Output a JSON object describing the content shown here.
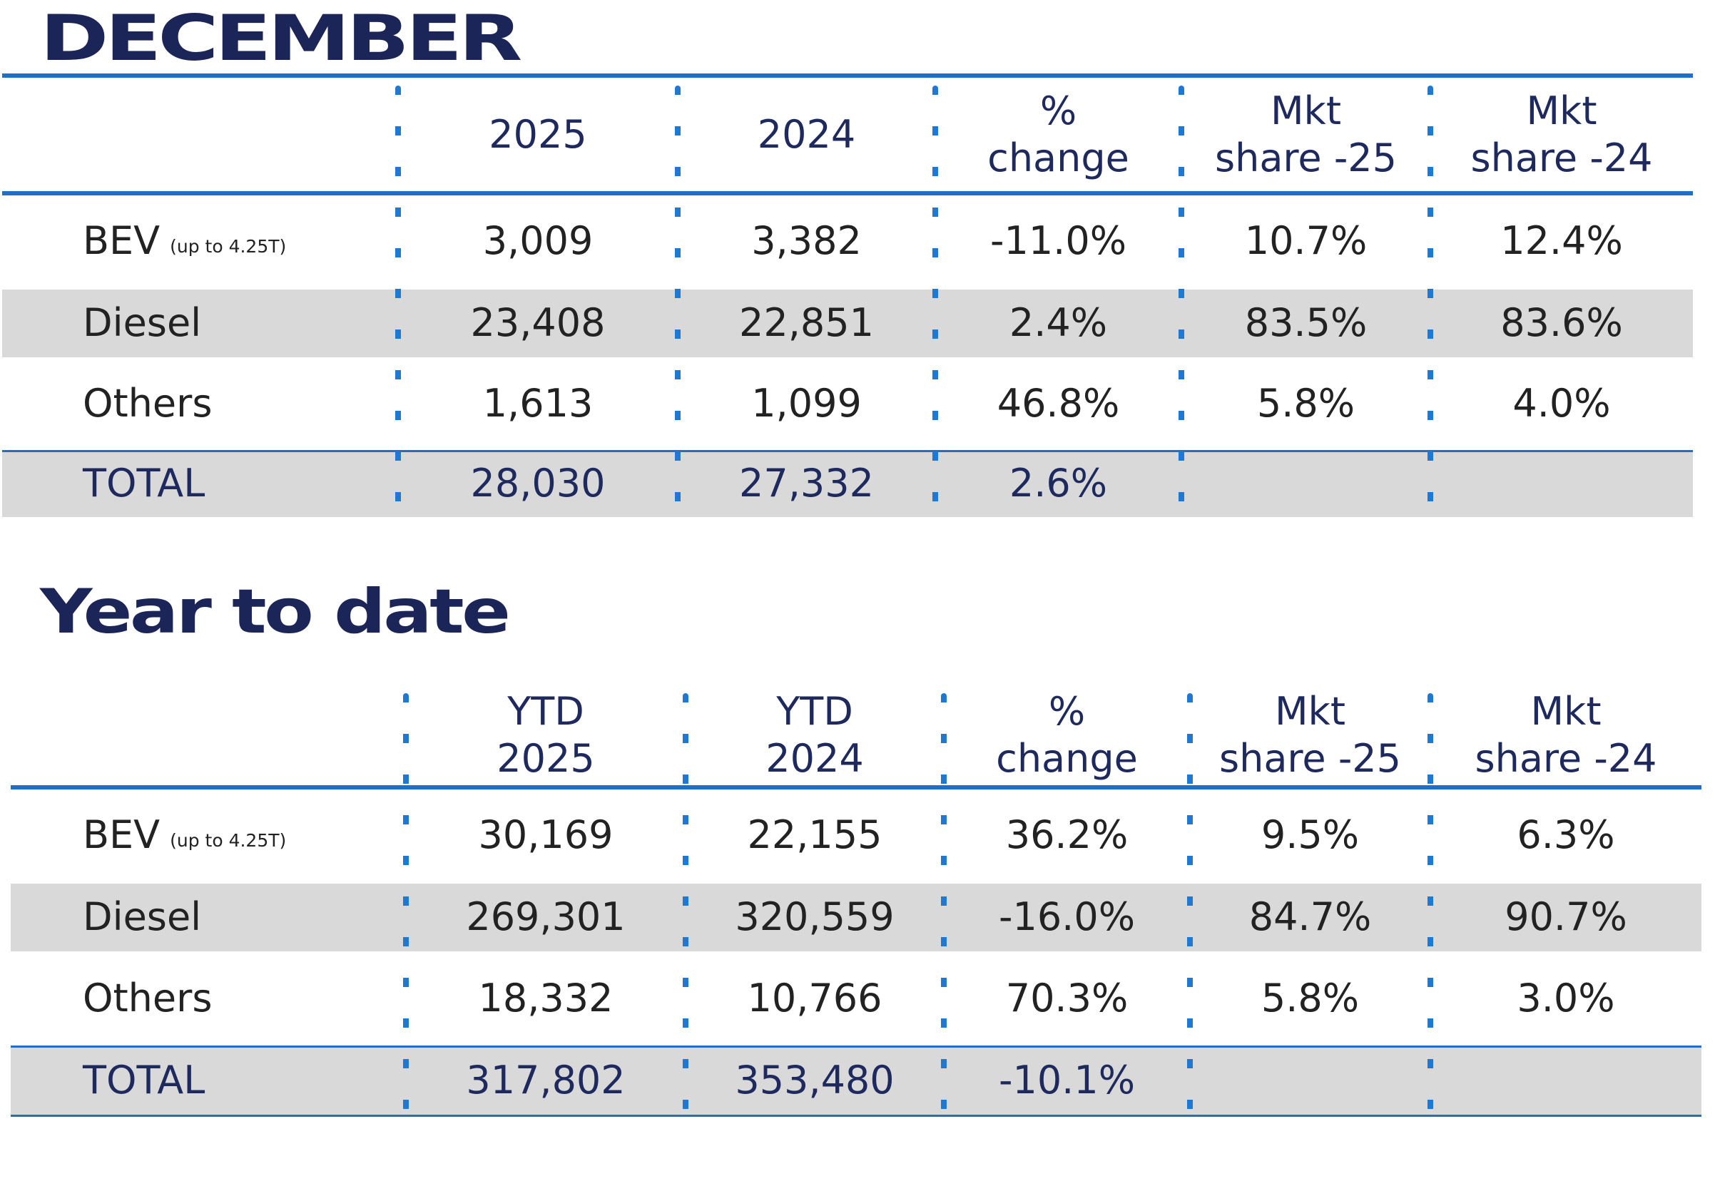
{
  "december": {
    "title": "DECEMBER",
    "headers": [
      "2025",
      "2024",
      "%\nchange",
      "Mkt\nshare -25",
      "Mkt\nshare -24"
    ],
    "rows": [
      {
        "label": "BEV",
        "sublabel": "(up to 4.25T)",
        "values": [
          "3,009",
          "3,382",
          "-11.0%",
          "10.7%",
          "12.4%"
        ]
      },
      {
        "label": "Diesel",
        "values": [
          "23,408",
          "22,851",
          "2.4%",
          "83.5%",
          "83.6%"
        ]
      },
      {
        "label": "Others",
        "values": [
          "1,613",
          "1,099",
          "46.8%",
          "5.8%",
          "4.0%"
        ]
      },
      {
        "label": "TOTAL",
        "values": [
          "28,030",
          "27,332",
          "2.6%",
          "",
          ""
        ]
      }
    ]
  },
  "ytd": {
    "title": "Year to date",
    "headers": [
      "YTD\n2025",
      "YTD\n2024",
      "%\nchange",
      "Mkt\nshare -25",
      "Mkt\nshare -24"
    ],
    "rows": [
      {
        "label": "BEV",
        "sublabel": "(up to 4.25T)",
        "values": [
          "30,169",
          "22,155",
          "36.2%",
          "9.5%",
          "6.3%"
        ]
      },
      {
        "label": "Diesel",
        "values": [
          "269,301",
          "320,559",
          "-16.0%",
          "84.7%",
          "90.7%"
        ]
      },
      {
        "label": "Others",
        "values": [
          "18,332",
          "10,766",
          "70.3%",
          "5.8%",
          "3.0%"
        ]
      },
      {
        "label": "TOTAL",
        "values": [
          "317,802",
          "353,480",
          "-10.1%",
          "",
          ""
        ]
      }
    ]
  },
  "colors": {
    "navy": "#1b2557",
    "blue": "#1f6fc6",
    "band": "#d9d9d9"
  }
}
